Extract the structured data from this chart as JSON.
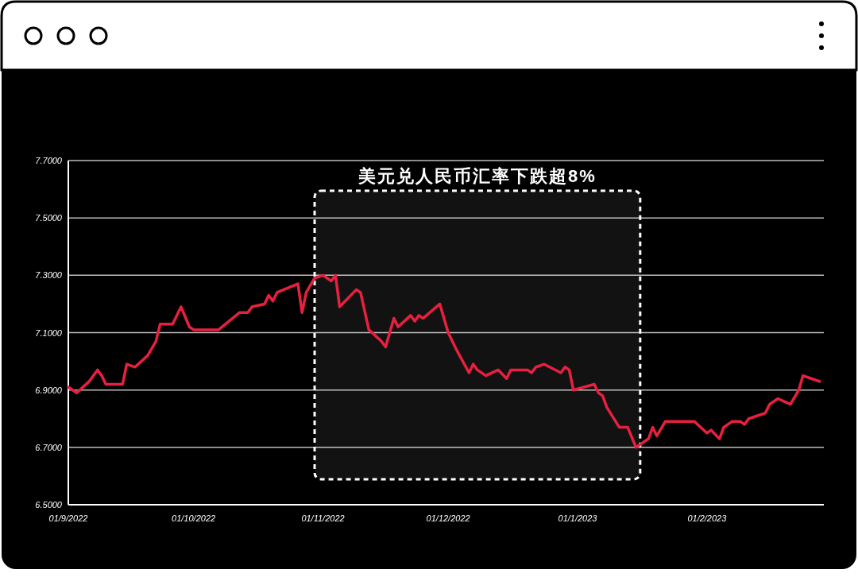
{
  "chart_data": {
    "type": "line",
    "x": [
      "2022-09-01",
      "2022-09-03",
      "2022-09-06",
      "2022-09-08",
      "2022-09-09",
      "2022-09-10",
      "2022-09-14",
      "2022-09-15",
      "2022-09-17",
      "2022-09-20",
      "2022-09-22",
      "2022-09-23",
      "2022-09-26",
      "2022-09-28",
      "2022-09-30",
      "2022-10-01",
      "2022-10-07",
      "2022-10-12",
      "2022-10-14",
      "2022-10-15",
      "2022-10-18",
      "2022-10-19",
      "2022-10-20",
      "2022-10-21",
      "2022-10-26",
      "2022-10-27",
      "2022-10-28",
      "2022-10-30",
      "2022-11-01",
      "2022-11-03",
      "2022-11-04",
      "2022-11-05",
      "2022-11-09",
      "2022-11-10",
      "2022-11-12",
      "2022-11-15",
      "2022-11-16",
      "2022-11-18",
      "2022-11-19",
      "2022-11-22",
      "2022-11-23",
      "2022-11-24",
      "2022-11-25",
      "2022-11-29",
      "2022-12-01",
      "2022-12-03",
      "2022-12-06",
      "2022-12-07",
      "2022-12-08",
      "2022-12-10",
      "2022-12-13",
      "2022-12-15",
      "2022-12-16",
      "2022-12-20",
      "2022-12-21",
      "2022-12-22",
      "2022-12-24",
      "2022-12-28",
      "2022-12-29",
      "2022-12-30",
      "2022-12-31",
      "2023-01-05",
      "2023-01-06",
      "2023-01-07",
      "2023-01-08",
      "2023-01-11",
      "2023-01-13",
      "2023-01-15",
      "2023-01-18",
      "2023-01-19",
      "2023-01-20",
      "2023-01-22",
      "2023-01-29",
      "2023-02-01",
      "2023-02-02",
      "2023-02-04",
      "2023-02-05",
      "2023-02-07",
      "2023-02-09",
      "2023-02-10",
      "2023-02-11",
      "2023-02-15",
      "2023-02-16",
      "2023-02-18",
      "2023-02-21",
      "2023-02-23",
      "2023-02-24",
      "2023-02-26",
      "2023-02-28"
    ],
    "series": [
      {
        "color": "#e8203f",
        "values": [
          6.91,
          6.89,
          6.93,
          6.97,
          6.95,
          6.92,
          6.92,
          6.99,
          6.98,
          7.02,
          7.07,
          7.13,
          7.13,
          7.19,
          7.12,
          7.11,
          7.11,
          7.17,
          7.17,
          7.19,
          7.2,
          7.23,
          7.21,
          7.24,
          7.27,
          7.17,
          7.24,
          7.29,
          7.3,
          7.28,
          7.3,
          7.19,
          7.25,
          7.24,
          7.11,
          7.07,
          7.05,
          7.15,
          7.12,
          7.16,
          7.14,
          7.16,
          7.15,
          7.2,
          7.1,
          7.04,
          6.96,
          6.99,
          6.97,
          6.95,
          6.97,
          6.94,
          6.97,
          6.97,
          6.96,
          6.98,
          6.99,
          6.96,
          6.98,
          6.97,
          6.9,
          6.92,
          6.89,
          6.88,
          6.84,
          6.77,
          6.77,
          6.7,
          6.73,
          6.77,
          6.74,
          6.79,
          6.79,
          6.75,
          6.76,
          6.73,
          6.77,
          6.79,
          6.79,
          6.78,
          6.8,
          6.82,
          6.85,
          6.87,
          6.85,
          6.9,
          6.95,
          6.94,
          6.93
        ]
      }
    ],
    "xlim": [
      "2022-09-01",
      "2023-03-01"
    ],
    "xticks": [
      {
        "value": "2022-09-01",
        "label": "01/9/2022"
      },
      {
        "value": "2022-10-01",
        "label": "01/10/2022"
      },
      {
        "value": "2022-11-01",
        "label": "01/11/2022"
      },
      {
        "value": "2022-12-01",
        "label": "01/12/2022"
      },
      {
        "value": "2023-01-01",
        "label": "01/1/2023"
      },
      {
        "value": "2023-02-01",
        "label": "01/2/2023"
      }
    ],
    "ylim": [
      6.5,
      7.7
    ],
    "yticks": [
      {
        "value": 6.5,
        "label": "6.5000"
      },
      {
        "value": 6.7,
        "label": "6.7000"
      },
      {
        "value": 6.9,
        "label": "6.9000"
      },
      {
        "value": 7.1,
        "label": "7.1000"
      },
      {
        "value": 7.3,
        "label": "7.3000"
      },
      {
        "value": 7.5,
        "label": "7.5000"
      },
      {
        "value": 7.7,
        "label": "7.7000"
      }
    ],
    "grid": "y",
    "bands": [
      {
        "axis": "x",
        "from": "2022-10-30",
        "to": "2023-01-16",
        "label": "美元兑人民币汇率下跌超8%",
        "color": "#ffffff"
      }
    ]
  }
}
